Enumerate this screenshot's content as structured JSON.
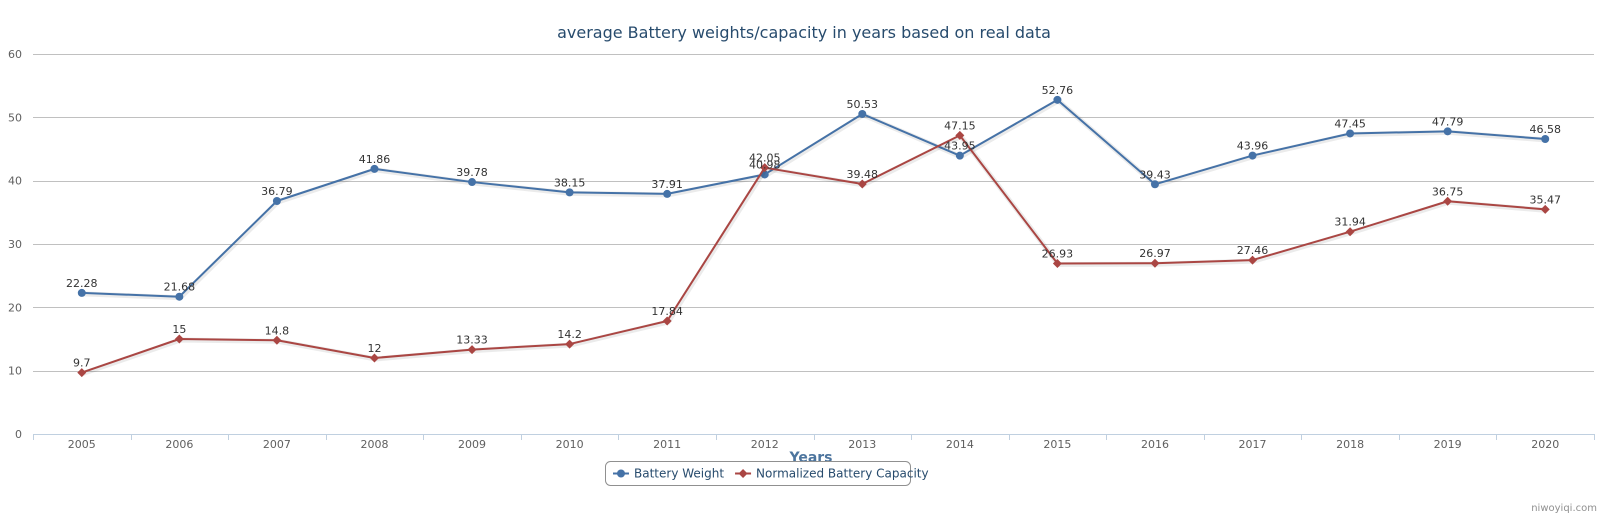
{
  "chart_data": {
    "type": "line",
    "title": "average Battery weights/capacity in years based on real data",
    "xlabel": "Years",
    "ylabel": "",
    "categories": [
      "2005",
      "2006",
      "2007",
      "2008",
      "2009",
      "2010",
      "2011",
      "2012",
      "2013",
      "2014",
      "2015",
      "2016",
      "2017",
      "2018",
      "2019",
      "2020"
    ],
    "ylim": [
      0,
      60
    ],
    "yticks": [
      0,
      10,
      20,
      30,
      40,
      50,
      60
    ],
    "grid": true,
    "legend_position": "bottom-center",
    "series": [
      {
        "name": "Battery Weight",
        "color": "#4572a7",
        "marker": "circle",
        "values": [
          22.28,
          21.68,
          36.79,
          41.86,
          39.78,
          38.15,
          37.91,
          40.98,
          50.53,
          43.95,
          52.76,
          39.43,
          43.96,
          47.45,
          47.79,
          46.58
        ]
      },
      {
        "name": "Normalized Battery Capacity",
        "color": "#aa4643",
        "marker": "diamond",
        "values": [
          9.7,
          15,
          14.8,
          12,
          13.33,
          14.2,
          17.84,
          42.05,
          39.48,
          47.15,
          26.93,
          26.97,
          27.46,
          31.94,
          36.75,
          35.47
        ]
      }
    ]
  },
  "credit": "niwoyiqi.com"
}
